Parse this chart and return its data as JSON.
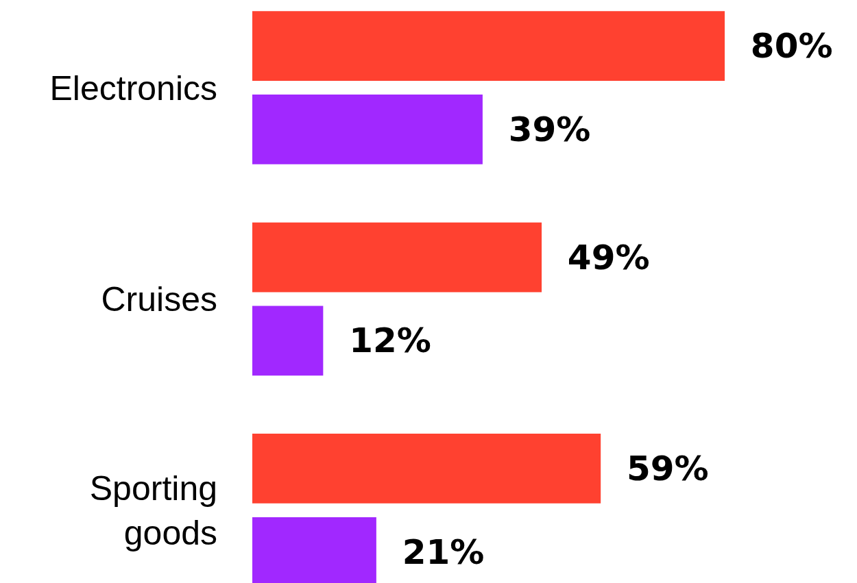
{
  "chart_data": {
    "type": "bar",
    "orientation": "horizontal",
    "categories": [
      "Electronics",
      "Cruises",
      "Sporting goods"
    ],
    "series": [
      {
        "color": "#ff4130",
        "values": [
          80,
          49,
          59
        ],
        "value_labels": [
          "80%",
          "49%",
          "59%"
        ]
      },
      {
        "color": "#a128ff",
        "values": [
          39,
          12,
          21
        ],
        "value_labels": [
          "39%",
          "12%",
          "21%"
        ]
      }
    ],
    "grid": false
  }
}
